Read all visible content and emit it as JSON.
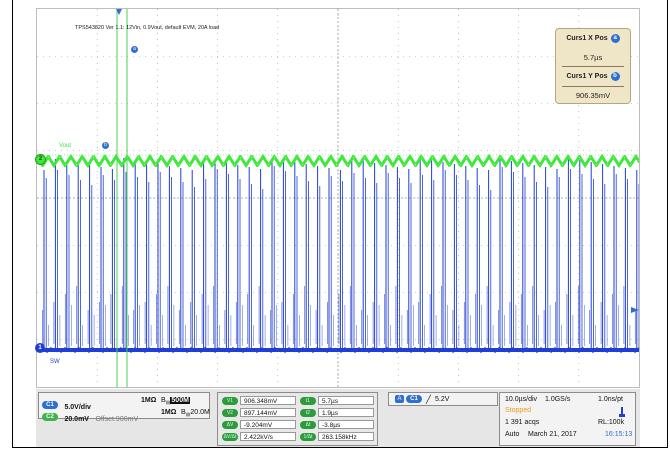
{
  "scope": {
    "title_annotation": "TPS543820 Ver 1.1: 12Vin, 0.9Vout,  default EVM, 20A load",
    "cursor_a_label": "a",
    "cursor_b_label": "b",
    "vout_label": "Vout",
    "sw_label": "SW",
    "ch1_marker": "1",
    "ch2_marker": "2",
    "colors": {
      "ch1": "#1f3fd4",
      "ch2": "#3ee83a",
      "cursor": "#4dd24d",
      "panel": "#efe6c8"
    }
  },
  "cursor_readout": {
    "x_label": "Curs1 X Pos",
    "x_badge": "a",
    "x_value": "5.7µs",
    "y_label": "Curs1 Y Pos",
    "y_badge": "b",
    "y_value": "906.35mV"
  },
  "channels": [
    {
      "badge": "C1",
      "scale": "5.0V/div",
      "offset": "",
      "impedance": "1MΩ",
      "bw": "500M"
    },
    {
      "badge": "C2",
      "scale": "20.0mV",
      "offset": "Offset:900mV",
      "impedance": "1MΩ",
      "bw": "20.0M"
    }
  ],
  "bw_prefix": "B",
  "bw_sub": "W",
  "measurements": {
    "left": [
      {
        "tag": "V1",
        "value": "906.348mV"
      },
      {
        "tag": "V2",
        "value": "897.144mV"
      },
      {
        "tag": "ΔV",
        "value": "-9.204mV"
      },
      {
        "tag": "ΔV/Δt",
        "value": "2.422kV/s"
      }
    ],
    "right": [
      {
        "tag": "t1",
        "value": "5.7µs"
      },
      {
        "tag": "t2",
        "value": "1.9µs"
      },
      {
        "tag": "Δt",
        "value": "-3.8µs"
      },
      {
        "tag": "1/Δt",
        "value": "263.158kHz"
      }
    ]
  },
  "trigger": {
    "mode": "A",
    "source": "C1",
    "slope_icon": "╱",
    "level": "5.2V"
  },
  "timebase": {
    "scale": "10.0µs/div",
    "rate": "1.0GS/s",
    "resolution": "1.0ns/pt",
    "status": "Stopped",
    "acqs": "1 391 acqs",
    "record": "RL:100k",
    "mode": "Auto",
    "date": "March 21, 2017",
    "time": "16:15:13"
  }
}
